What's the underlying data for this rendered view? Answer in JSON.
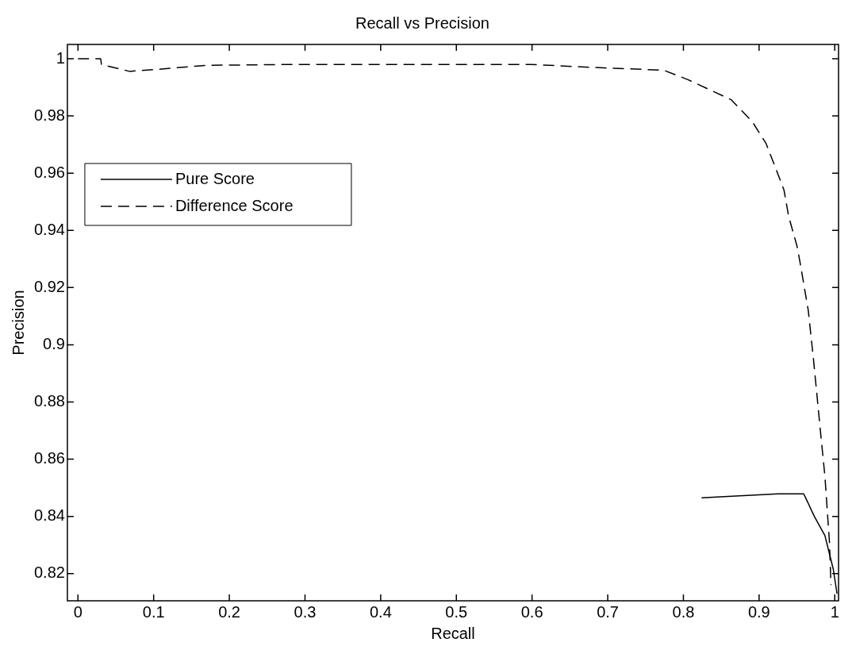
{
  "chart_data": {
    "type": "line",
    "title": "Recall vs Precision",
    "xlabel": "Recall",
    "ylabel": "Precision",
    "xlim": [
      -0.014,
      1.005
    ],
    "xticks": [
      0,
      0.1,
      0.2,
      0.3,
      0.4,
      0.5,
      0.6,
      0.7,
      0.8,
      0.9,
      1
    ],
    "ylim": [
      0.8105,
      1.005
    ],
    "yticks": [
      0.82,
      0.84,
      0.86,
      0.88,
      0.9,
      0.92,
      0.94,
      0.96,
      0.98,
      1
    ],
    "legend": "top left",
    "marker": "none",
    "series": [
      {
        "name": "Pure Score",
        "color": "#000000",
        "line_style": "solid",
        "x": [
          0.824,
          0.859,
          0.925,
          0.959,
          0.973,
          0.987,
          0.998,
          1.003
        ],
        "values": [
          0.8465,
          0.847,
          0.8479,
          0.8479,
          0.84,
          0.8333,
          0.8216,
          0.813
        ]
      },
      {
        "name": "Difference Score",
        "color": "#000000",
        "line_style": "dashed",
        "x": [
          0,
          0.03,
          0.031,
          0.068,
          0.1,
          0.17,
          0.28,
          0.599,
          0.695,
          0.774,
          0.806,
          0.863,
          0.891,
          0.909,
          0.922,
          0.933,
          0.939,
          0.95,
          0.954,
          0.965,
          0.972,
          0.981,
          0.987,
          0.993,
          0.995
        ],
        "values": [
          1.0,
          1.0,
          0.998,
          0.9956,
          0.9962,
          0.9977,
          0.998,
          0.998,
          0.9968,
          0.996,
          0.9927,
          0.9857,
          0.978,
          0.9705,
          0.9617,
          0.954,
          0.945,
          0.9346,
          0.929,
          0.912,
          0.8946,
          0.87,
          0.854,
          0.831,
          0.816
        ]
      }
    ]
  }
}
